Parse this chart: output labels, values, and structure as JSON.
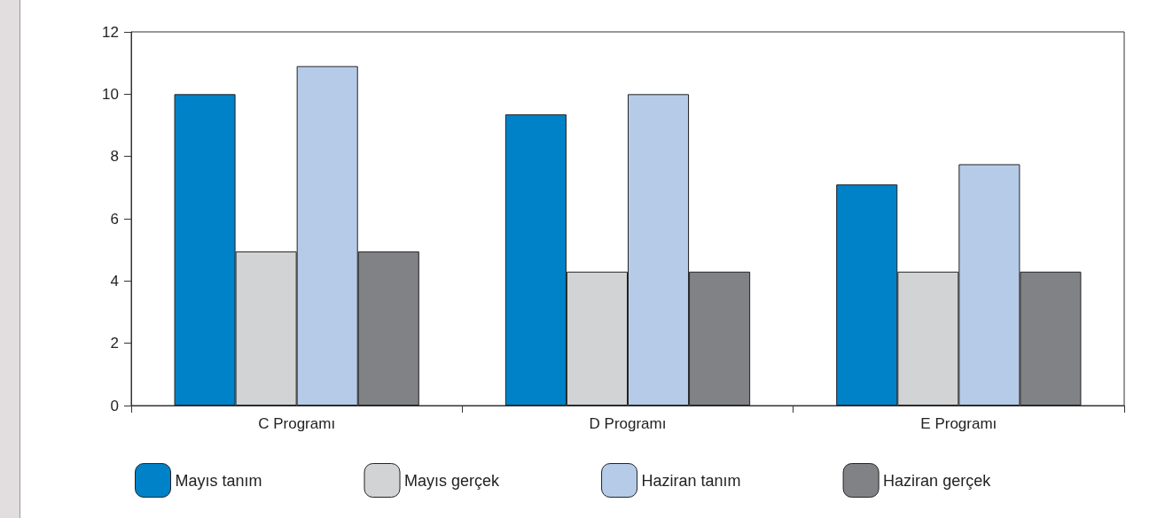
{
  "chart_data": {
    "type": "bar",
    "categories": [
      "C Programı",
      "D Programı",
      "E Programı"
    ],
    "series": [
      {
        "name": "Mayıs tanım",
        "color": "#0082c8",
        "values": [
          10.0,
          9.35,
          7.1
        ]
      },
      {
        "name": "Mayıs gerçek",
        "color": "#d1d3d4",
        "values": [
          4.95,
          4.3,
          4.3
        ]
      },
      {
        "name": "Haziran tanım",
        "color": "#b6cbe8",
        "values": [
          10.9,
          10.0,
          7.75
        ]
      },
      {
        "name": "Haziran gerçek",
        "color": "#808285",
        "values": [
          4.95,
          4.3,
          4.3
        ]
      }
    ],
    "ylim": [
      0,
      12
    ],
    "yticks": [
      0,
      2,
      4,
      6,
      8,
      10,
      12
    ],
    "grid": false,
    "legend": "bottom"
  }
}
